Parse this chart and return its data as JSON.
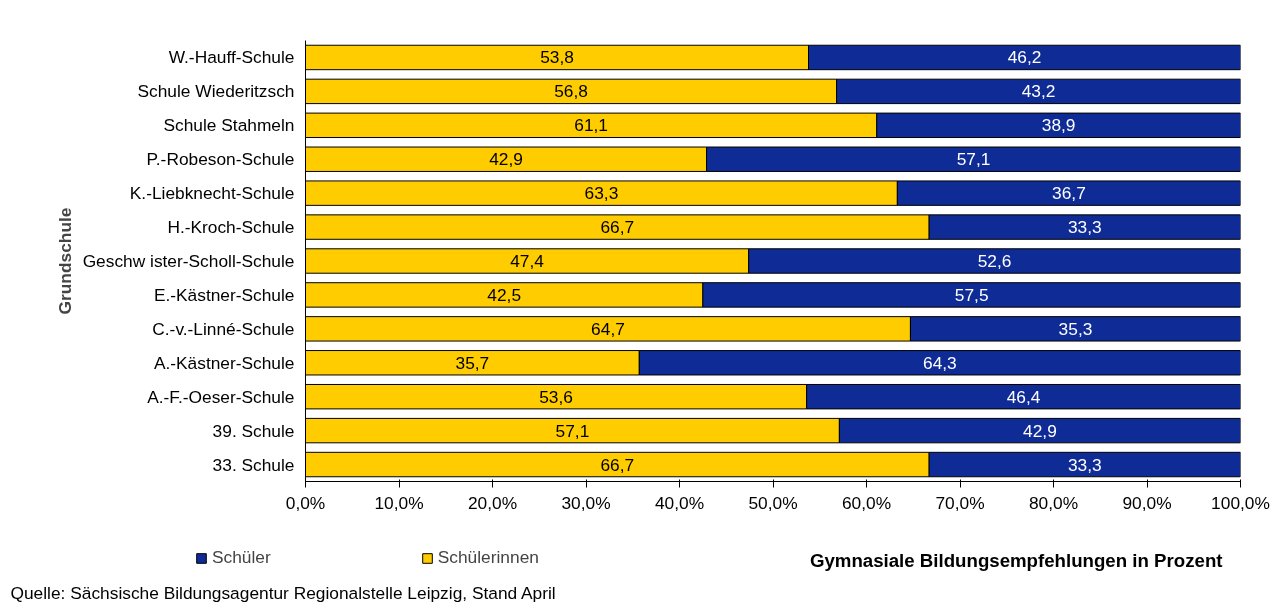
{
  "chart_data": {
    "type": "bar",
    "orientation": "horizontal",
    "stacked": true,
    "categories": [
      "W.-Hauff-Schule",
      "Schule Wiederitzsch",
      "Schule Stahmeln",
      "P.-Robeson-Schule",
      "K.-Liebknecht-Schule",
      "H.-Kroch-Schule",
      "Geschw ister-Scholl-Schule",
      "E.-Kästner-Schule",
      "C.-v.-Linné-Schule",
      "A.-Kästner-Schule",
      "A.-F.-Oeser-Schule",
      "39. Schule",
      "33. Schule"
    ],
    "series": [
      {
        "name": "Schülerinnen",
        "color": "#ffcc00",
        "values": [
          53.8,
          56.8,
          61.1,
          42.9,
          63.3,
          66.7,
          47.4,
          42.5,
          64.7,
          35.7,
          53.6,
          57.1,
          66.7
        ],
        "value_labels": [
          "53,8",
          "56,8",
          "61,1",
          "42,9",
          "63,3",
          "66,7",
          "47,4",
          "42,5",
          "64,7",
          "35,7",
          "53,6",
          "57,1",
          "66,7"
        ]
      },
      {
        "name": "Schüler",
        "color": "#0f2c96",
        "values": [
          46.2,
          43.2,
          38.9,
          57.1,
          36.7,
          33.3,
          52.6,
          57.5,
          35.3,
          64.3,
          46.4,
          42.9,
          33.3
        ],
        "value_labels": [
          "46,2",
          "43,2",
          "38,9",
          "57,1",
          "36,7",
          "33,3",
          "52,6",
          "57,5",
          "35,3",
          "64,3",
          "46,4",
          "42,9",
          "33,3"
        ]
      }
    ],
    "xlim": [
      0,
      100
    ],
    "xticks": [
      {
        "value": 0,
        "label": "0,0%"
      },
      {
        "value": 10,
        "label": "10,0%"
      },
      {
        "value": 20,
        "label": "20,0%"
      },
      {
        "value": 30,
        "label": "30,0%"
      },
      {
        "value": 40,
        "label": "40,0%"
      },
      {
        "value": 50,
        "label": "50,0%"
      },
      {
        "value": 60,
        "label": "60,0%"
      },
      {
        "value": 70,
        "label": "70,0%"
      },
      {
        "value": 80,
        "label": "80,0%"
      },
      {
        "value": 90,
        "label": "90,0%"
      },
      {
        "value": 100,
        "label": "100,0%"
      }
    ],
    "xlabel": "Gymnasiale Bildungsempfehlungen in Prozent",
    "ylabel": "Grundschule",
    "legend": "bottom",
    "grid": false,
    "annotations": [
      "Quelle: Sächsische Bildungsagentur Regionalstelle Leipzig, Stand April"
    ]
  }
}
